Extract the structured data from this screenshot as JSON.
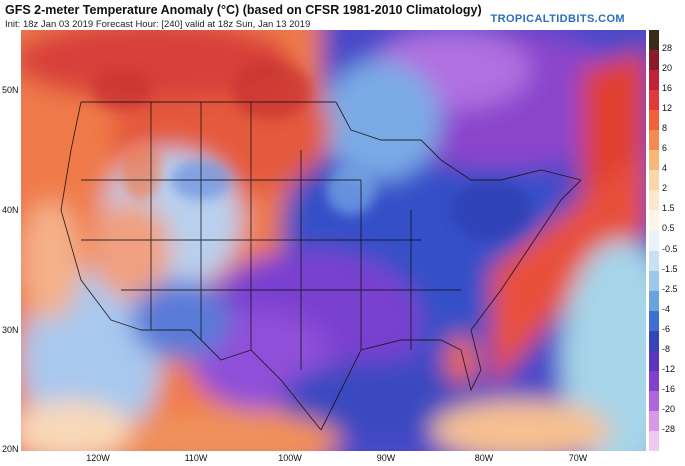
{
  "header": {
    "title": "GFS 2-meter Temperature Anomaly (°C) (based on CFSR 1981-2010 Climatology)",
    "subtitle": "Init: 18z Jan 03 2019   Forecast Hour: [240]   valid at 18z Sun, Jan 13 2019",
    "brand": "TROPICALTIDBITS.COM"
  },
  "axes": {
    "lat_labels": [
      "50N",
      "40N",
      "30N",
      "20N"
    ],
    "lon_labels": [
      "120W",
      "110W",
      "100W",
      "90W",
      "80W",
      "70W"
    ]
  },
  "colorbar": {
    "ticks": [
      "28",
      "20",
      "16",
      "12",
      "8",
      "6",
      "4",
      "2",
      "1.5",
      "0.5",
      "-0.5",
      "-1.5",
      "-2.5",
      "-4",
      "-6",
      "-8",
      "-12",
      "-16",
      "-20",
      "-28"
    ],
    "colors": [
      "#3a2a1a",
      "#8b1a2a",
      "#c0223a",
      "#e03a3a",
      "#f0603a",
      "#f58a50",
      "#f8b878",
      "#fad6a8",
      "#fce8cc",
      "#fdf4ea",
      "#eaf2fa",
      "#c8e0f4",
      "#9cc8ec",
      "#6aa4e0",
      "#3f6fd0",
      "#3346b8",
      "#5a35c0",
      "#8040cc",
      "#b066dc",
      "#d89ae8",
      "#f0c8f4"
    ]
  }
}
